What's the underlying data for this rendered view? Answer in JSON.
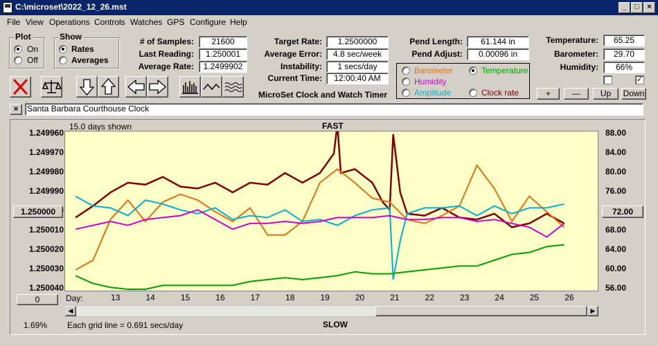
{
  "window": {
    "title": "C:\\microset\\2022_12_26.mst"
  },
  "menu": [
    "File",
    "View",
    "Operations",
    "Controls",
    "Watches",
    "GPS",
    "Configure",
    "Help"
  ],
  "plot_group": {
    "title": "Plot",
    "options": [
      "On",
      "Off"
    ],
    "selected": "On"
  },
  "show_group": {
    "title": "Show",
    "options": [
      "Rates",
      "Averages"
    ],
    "selected": "Rates"
  },
  "stats": {
    "samples_label": "# of Samples:",
    "samples": "21600",
    "last_label": "Last Reading:",
    "last": "1.250001",
    "avg_label": "Average Rate:",
    "avg": "1.2499902"
  },
  "rates": {
    "target_label": "Target Rate:",
    "target": "1.2500000",
    "error_label": "Average Error:",
    "error": "4.8 sec/week",
    "instab_label": "Instability:",
    "instab": "1 secs/day",
    "time_label": "Current Time:",
    "time": "12:00:40 AM"
  },
  "app_subtitle": "MicroSet Clock and Watch Timer",
  "pend": {
    "length_label": "Pend Length:",
    "length": "61.144 in",
    "adjust_label": "Pend Adjust:",
    "adjust": "0.00096 in"
  },
  "sensor_select": {
    "options": [
      {
        "label": "Barometer",
        "color": "#e07010",
        "selected": false
      },
      {
        "label": "Temperature",
        "color": "#00a000",
        "selected": true
      },
      {
        "label": "Humidity",
        "color": "#d000d0",
        "selected": false
      },
      {
        "label": "Clock rate",
        "color": "#800000",
        "selected": false
      },
      {
        "label": "Amplitude",
        "color": "#00b0d0",
        "selected": false
      }
    ]
  },
  "env": {
    "temp_label": "Temperature:",
    "temp": "65.25",
    "baro_label": "Barometer:",
    "baro": "29.70",
    "hum_label": "Humidity:",
    "hum": "66%",
    "check1": false,
    "check2": true
  },
  "small_buttons": {
    "plus": "+",
    "minus": "—",
    "up": "Up",
    "down": "Down"
  },
  "clock_name": "Santa Barbara Courthouse Clock",
  "chart": {
    "days_shown": "15.0 days shown",
    "fast_label": "FAST",
    "slow_label": "SLOW",
    "grid_note": "Each grid line = 0.691 secs/day",
    "percent": "1.69%",
    "day_label": "Day:",
    "left_button": "1.250000",
    "right_button": "72.00",
    "zero_button": "0"
  },
  "chart_data": {
    "type": "line",
    "x_ticks": [
      "13",
      "14",
      "15",
      "16",
      "17",
      "18",
      "19",
      "20",
      "21",
      "22",
      "23",
      "24",
      "25",
      "26"
    ],
    "y_left_ticks": [
      "1.249960",
      "1.249970",
      "1.249980",
      "1.249990",
      "1.250000",
      "1.250010",
      "1.250020",
      "1.250030",
      "1.250040"
    ],
    "y_right_ticks": [
      "88.00",
      "84.00",
      "80.00",
      "76.00",
      "72.00",
      "68.00",
      "64.00",
      "60.00",
      "56.00"
    ],
    "ylim_left": [
      1.24996,
      1.25004
    ],
    "ylim_right": [
      56,
      88
    ],
    "grid": false,
    "series": [
      {
        "name": "Clock rate",
        "color": "#800000",
        "x": [
          12.5,
          13,
          13.5,
          14,
          14.5,
          15,
          15.5,
          16,
          16.5,
          17,
          17.5,
          18,
          18.5,
          19,
          19.5,
          19.9,
          20,
          20.1,
          20.5,
          21,
          21.3,
          21.5,
          21.6,
          21.8,
          22,
          22.5,
          23,
          23.5,
          24,
          24.5,
          25,
          25.5,
          26,
          26.5
        ],
        "y": [
          1.250003,
          1.249997,
          1.24999,
          1.249985,
          1.249986,
          1.249982,
          1.249987,
          1.249988,
          1.249985,
          1.24999,
          1.249985,
          1.249986,
          1.24998,
          1.249985,
          1.24998,
          1.24997,
          1.249955,
          1.24998,
          1.249978,
          1.249985,
          1.249995,
          1.249999,
          1.24996,
          1.24999,
          1.250001,
          1.250002,
          1.249998,
          1.250003,
          1.250004,
          1.250001,
          1.250008,
          1.250006,
          1.250001,
          1.250006
        ]
      },
      {
        "name": "Barometer",
        "color": "#e07010",
        "x": [
          12.5,
          13,
          13.5,
          14,
          14.5,
          15,
          15.5,
          16,
          16.5,
          17,
          17.5,
          18,
          18.5,
          19,
          19.5,
          20,
          20.5,
          21,
          21.5,
          22,
          22.5,
          23,
          23.5,
          24,
          24.5,
          25,
          25.5,
          26,
          26.5
        ],
        "y": [
          1.25003,
          1.250025,
          1.250004,
          1.249994,
          1.250005,
          1.249995,
          1.249991,
          1.249994,
          1.25,
          1.250005,
          1.249998,
          1.250012,
          1.250012,
          1.250005,
          1.249985,
          1.249978,
          1.249985,
          1.249993,
          1.249995,
          1.250004,
          1.250006,
          1.250002,
          1.249997,
          1.249976,
          1.249988,
          1.250005,
          1.249992,
          1.25,
          1.250008
        ]
      },
      {
        "name": "Amplitude",
        "color": "#00b0d0",
        "x": [
          12.5,
          13,
          13.5,
          14,
          14.5,
          15,
          15.5,
          16,
          16.5,
          17,
          17.5,
          18,
          18.5,
          19,
          19.5,
          20,
          20.5,
          21,
          21.5,
          21.6,
          21.8,
          22,
          22.5,
          23,
          23.5,
          24,
          24.5,
          25,
          25.5,
          26,
          26.5
        ],
        "y": [
          1.249992,
          1.249997,
          1.249998,
          1.250002,
          1.249994,
          1.249996,
          1.249999,
          1.250001,
          1.249998,
          1.250004,
          1.250002,
          1.250003,
          1.249999,
          1.250005,
          1.250004,
          1.250007,
          1.250002,
          1.249999,
          1.249998,
          1.250035,
          1.250015,
          1.250001,
          1.249998,
          1.249998,
          1.249997,
          1.250002,
          1.249997,
          1.250001,
          1.249998,
          1.249998,
          1.249996
        ]
      },
      {
        "name": "Humidity",
        "color": "#d000d0",
        "x": [
          12.5,
          13,
          13.5,
          14,
          14.5,
          15,
          15.5,
          16,
          16.5,
          17,
          17.5,
          18,
          18.5,
          19,
          19.5,
          20,
          20.5,
          21,
          21.5,
          22,
          22.5,
          23,
          23.5,
          24,
          24.5,
          25,
          25.5,
          26,
          26.5
        ],
        "y": [
          1.250009,
          1.250007,
          1.250005,
          1.250007,
          1.250004,
          1.250003,
          1.250002,
          1.249999,
          1.250004,
          1.250009,
          1.250006,
          1.250006,
          1.250005,
          1.250006,
          1.250005,
          1.250003,
          1.250003,
          1.250003,
          1.250002,
          1.250004,
          1.250004,
          1.250003,
          1.250003,
          1.250005,
          1.250004,
          1.250006,
          1.250008,
          1.250013,
          1.250006
        ]
      },
      {
        "name": "Temperature",
        "color": "#00a000",
        "x": [
          12.5,
          13,
          13.5,
          14,
          14.5,
          15,
          15.5,
          16,
          16.5,
          17,
          17.5,
          18,
          18.5,
          19,
          19.5,
          20,
          20.5,
          21,
          21.5,
          22,
          22.5,
          23,
          23.5,
          24,
          24.5,
          25,
          25.5,
          26,
          26.5
        ],
        "y": [
          1.250033,
          1.250037,
          1.250039,
          1.25004,
          1.25004,
          1.250038,
          1.250038,
          1.250038,
          1.250038,
          1.250038,
          1.250036,
          1.250035,
          1.250034,
          1.250035,
          1.250034,
          1.250033,
          1.250031,
          1.250032,
          1.250032,
          1.250031,
          1.25003,
          1.250029,
          1.250028,
          1.250028,
          1.250025,
          1.250022,
          1.250021,
          1.250018,
          1.250017
        ]
      }
    ]
  }
}
